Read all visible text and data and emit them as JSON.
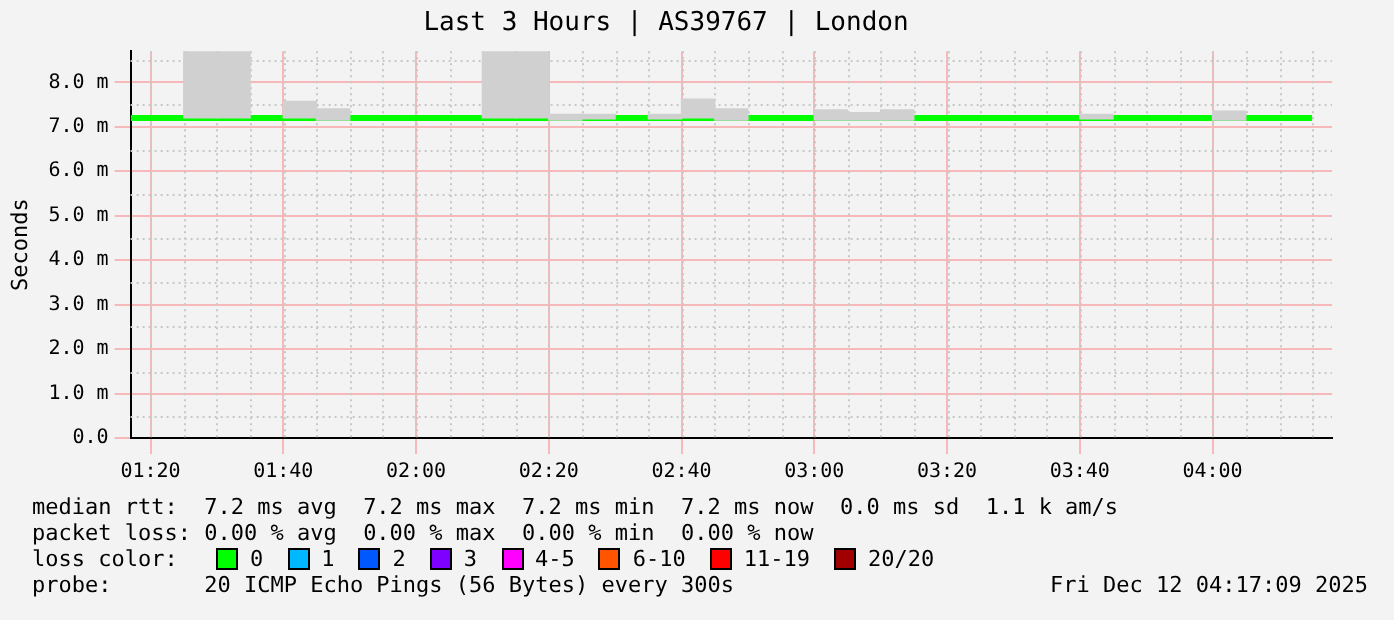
{
  "chart_data": {
    "type": "bar",
    "title": "Last 3 Hours | AS39767 | London",
    "ylabel": "Seconds",
    "x": [
      1.4583,
      1.5417,
      1.625,
      1.7083,
      1.7917,
      1.875,
      1.9583,
      2.0417,
      2.125,
      2.2083,
      2.2917,
      2.375,
      2.4583,
      2.5417,
      2.625,
      2.7083,
      2.7917,
      2.875,
      2.9583,
      3.0417,
      3.125,
      3.2083,
      3.2917,
      3.375,
      3.4583,
      3.5417,
      3.625,
      3.7083,
      3.7917,
      3.875,
      3.9583,
      4.0417
    ],
    "series": [
      {
        "color": "#d0d0d0",
        "base": [
          7.2,
          7.2,
          null,
          7.2,
          7.15,
          null,
          null,
          null,
          null,
          7.2,
          7.2,
          7.15,
          7.18,
          null,
          7.18,
          7.2,
          7.15,
          null,
          null,
          7.15,
          7.15,
          7.15,
          null,
          null,
          null,
          null,
          null,
          7.18,
          null,
          null,
          null,
          7.15
        ],
        "values": [
          1.5,
          1.5,
          null,
          0.37,
          0.25,
          null,
          null,
          null,
          null,
          1.5,
          1.5,
          0.13,
          0.1,
          null,
          0.1,
          0.42,
          0.25,
          null,
          null,
          0.23,
          0.17,
          0.23,
          null,
          null,
          null,
          null,
          null,
          0.1,
          null,
          null,
          null,
          0.2
        ]
      },
      {
        "type": "line",
        "color": "#00ff00",
        "x": [
          1.2833,
          4.25
        ],
        "values": [
          7.2,
          7.2
        ]
      }
    ],
    "xlim": [
      1.2833,
      4.3
    ],
    "xticks": [
      {
        "value": 1.3333,
        "label": "01:20"
      },
      {
        "value": 1.6667,
        "label": "01:40"
      },
      {
        "value": 2,
        "label": "02:00"
      },
      {
        "value": 2.3333,
        "label": "02:20"
      },
      {
        "value": 2.6667,
        "label": "02:40"
      },
      {
        "value": 3,
        "label": "03:00"
      },
      {
        "value": 3.3333,
        "label": "03:20"
      },
      {
        "value": 3.6667,
        "label": "03:40"
      },
      {
        "value": 4,
        "label": "04:00"
      }
    ],
    "ylim": [
      0,
      8.7
    ],
    "yticks": [
      {
        "value": 0,
        "label": "0.0"
      },
      {
        "value": 1,
        "label": "1.0 m"
      },
      {
        "value": 2,
        "label": "2.0 m"
      },
      {
        "value": 3,
        "label": "3.0 m"
      },
      {
        "value": 4,
        "label": "4.0 m"
      },
      {
        "value": 5,
        "label": "5.0 m"
      },
      {
        "value": 6,
        "label": "6.0 m"
      },
      {
        "value": 7,
        "label": "7.0 m"
      },
      {
        "value": 8,
        "label": "8.0 m"
      }
    ],
    "grid": true,
    "legend": false,
    "annotations": [
      "median rtt:  7.2 ms avg  7.2 ms max  7.2 ms min  7.2 ms now  0.0 ms sd  1.1 k am/s",
      "packet loss: 0.00 % avg  0.00 % max  0.00 % min  0.00 % now",
      "loss color:",
      "0",
      "1",
      "2",
      "3",
      "4-5",
      "6-10",
      "11-19",
      "20/20",
      "probe:       20 ICMP Echo Pings (56 Bytes) every 300s",
      "Fri Dec 12 04:17:09 2025"
    ]
  }
}
